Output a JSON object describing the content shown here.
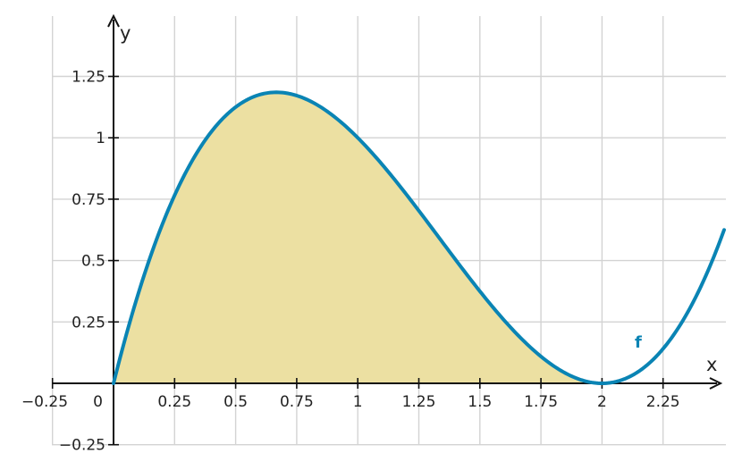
{
  "chart_data": {
    "type": "area",
    "function": "x(x-2)^2",
    "xlabel": "x",
    "ylabel": "y",
    "xlim": [
      -0.25,
      2.5
    ],
    "ylim": [
      -0.25,
      1.5
    ],
    "grid": true,
    "x_ticks": [
      {
        "value": -0.25,
        "label": "−0.25"
      },
      {
        "value": 0,
        "label": "0"
      },
      {
        "value": 0.25,
        "label": "0.25"
      },
      {
        "value": 0.5,
        "label": "0.5"
      },
      {
        "value": 0.75,
        "label": "0.75"
      },
      {
        "value": 1,
        "label": "1"
      },
      {
        "value": 1.25,
        "label": "1.25"
      },
      {
        "value": 1.5,
        "label": "1.5"
      },
      {
        "value": 1.75,
        "label": "1.75"
      },
      {
        "value": 2,
        "label": "2"
      },
      {
        "value": 2.25,
        "label": "2.25"
      }
    ],
    "y_ticks": [
      {
        "value": -0.25,
        "label": "−0.25"
      },
      {
        "value": 0.25,
        "label": "0.25"
      },
      {
        "value": 0.5,
        "label": "0.5"
      },
      {
        "value": 0.75,
        "label": "0.75"
      },
      {
        "value": 1,
        "label": "1"
      },
      {
        "value": 1.25,
        "label": "1.25"
      }
    ],
    "series": [
      {
        "name": "f",
        "color": "#0a84b4",
        "fill_color": "#ece0a2",
        "shaded_interval": [
          0,
          2
        ],
        "x": [
          0,
          0.125,
          0.25,
          0.375,
          0.5,
          0.625,
          0.667,
          0.75,
          0.875,
          1,
          1.125,
          1.25,
          1.375,
          1.5,
          1.625,
          1.75,
          1.875,
          2,
          2.125,
          2.25,
          2.375,
          2.5
        ],
        "y": [
          0,
          0.439,
          0.766,
          0.99,
          1.125,
          1.182,
          1.185,
          1.172,
          1.107,
          1,
          0.861,
          0.703,
          0.537,
          0.375,
          0.229,
          0.109,
          0.029,
          0,
          0.033,
          0.141,
          0.334,
          0.625
        ]
      }
    ]
  }
}
